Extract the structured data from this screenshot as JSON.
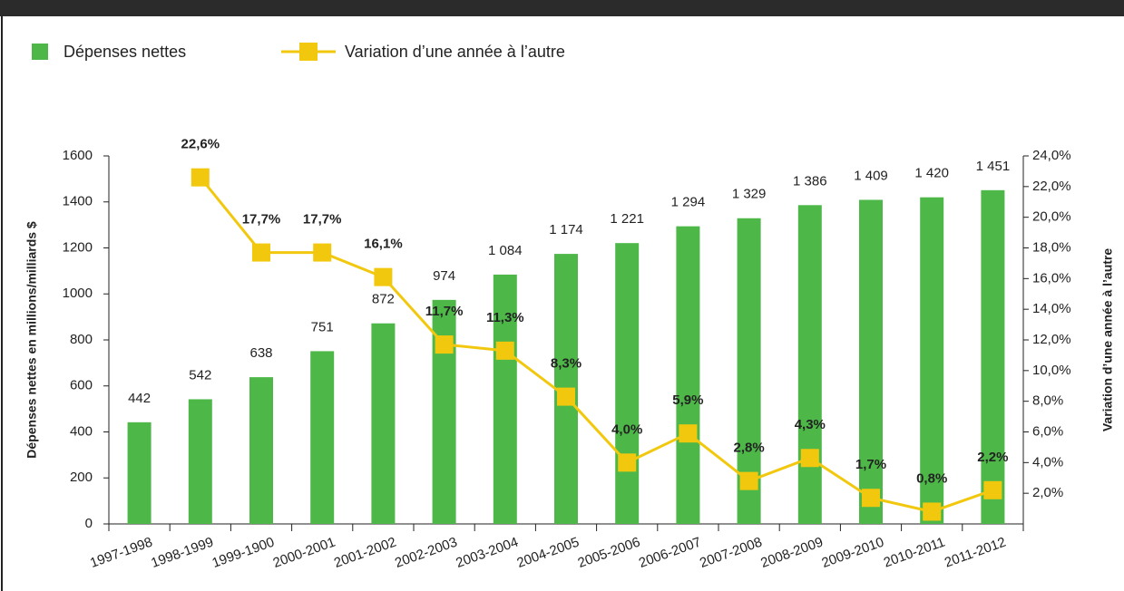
{
  "chart_data": {
    "type": "bar",
    "categories": [
      "1997-1998",
      "1998-1999",
      "1999-1900",
      "2000-2001",
      "2001-2002",
      "2002-2003",
      "2003-2004",
      "2004-2005",
      "2005-2006",
      "2006-2007",
      "2007-2008",
      "2008-2009",
      "2009-2010",
      "2010-2011",
      "2011-2012"
    ],
    "series": [
      {
        "name": "Dépenses nettes",
        "color": "#4db848",
        "type": "bar",
        "values": [
          442,
          542,
          638,
          751,
          872,
          974,
          1084,
          1174,
          1221,
          1294,
          1329,
          1386,
          1409,
          1420,
          1451
        ],
        "value_labels": [
          "442",
          "542",
          "638",
          "751",
          "872",
          "974",
          "1 084",
          "1 174",
          "1 221",
          "1 294",
          "1 329",
          "1 386",
          "1 409",
          "1 420",
          "1 451"
        ]
      },
      {
        "name": "Variation d’une année à l’autre",
        "color": "#f2c80f",
        "type": "line",
        "axis": "y2",
        "values": [
          null,
          22.6,
          17.7,
          17.7,
          16.1,
          11.7,
          11.3,
          8.3,
          4.0,
          5.9,
          2.8,
          4.3,
          1.7,
          0.8,
          2.2
        ],
        "value_labels": [
          null,
          "22,6%",
          "17,7%",
          "17,7%",
          "16,1%",
          "11,7%",
          "11,3%",
          "8,3%",
          "4,0%",
          "5,9%",
          "2,8%",
          "4,3%",
          "1,7%",
          "0,8%",
          "2,2%"
        ]
      }
    ],
    "ylabel": "Dépenses nettes en millions/milliards $",
    "y2label": "Variation d’une année à l’autre",
    "ylim": [
      0,
      1600
    ],
    "yticks": [
      0,
      200,
      400,
      600,
      800,
      1000,
      1200,
      1400,
      1600
    ],
    "y2lim": [
      0,
      24
    ],
    "y2ticks": [
      {
        "value": 2,
        "label": "2,0%"
      },
      {
        "value": 4,
        "label": "4,0%"
      },
      {
        "value": 6,
        "label": "6,0%"
      },
      {
        "value": 8,
        "label": "8,0%"
      },
      {
        "value": 10,
        "label": "10,0%"
      },
      {
        "value": 12,
        "label": "12,0%"
      },
      {
        "value": 14,
        "label": "14,0%"
      },
      {
        "value": 16,
        "label": "16,0%"
      },
      {
        "value": 18,
        "label": "18,0%"
      },
      {
        "value": 20,
        "label": "20,0%"
      },
      {
        "value": 22,
        "label": "22,0%"
      },
      {
        "value": 24,
        "label": "24,0%"
      }
    ],
    "grid": false,
    "legend": "top-left"
  }
}
